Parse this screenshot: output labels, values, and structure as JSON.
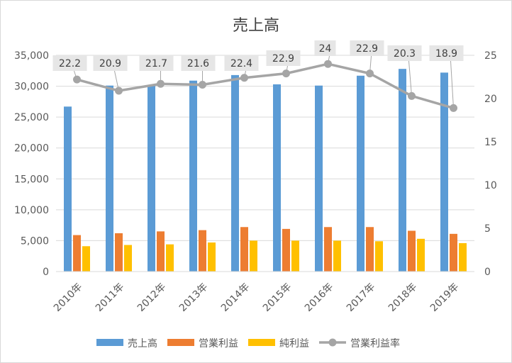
{
  "chart_data": {
    "type": "bar",
    "title": "売上高",
    "categories": [
      "2010年",
      "2011年",
      "2012年",
      "2013年",
      "2014年",
      "2015年",
      "2016年",
      "2017年",
      "2018年",
      "2019年"
    ],
    "series": [
      {
        "name": "売上高",
        "type": "bar",
        "axis": "left",
        "color": "#5b9bd5",
        "values": [
          26700,
          30100,
          30100,
          30900,
          31800,
          30300,
          30100,
          31700,
          32800,
          32200
        ]
      },
      {
        "name": "営業利益",
        "type": "bar",
        "axis": "left",
        "color": "#ed7d31",
        "values": [
          5900,
          6200,
          6500,
          6700,
          7200,
          6900,
          7200,
          7200,
          6600,
          6100
        ]
      },
      {
        "name": "純利益",
        "type": "bar",
        "axis": "left",
        "color": "#ffc000",
        "values": [
          4100,
          4300,
          4400,
          4700,
          5000,
          5000,
          5000,
          4900,
          5300,
          4600
        ]
      },
      {
        "name": "営業利益率",
        "type": "line",
        "axis": "right",
        "color": "#a5a5a5",
        "values": [
          22.2,
          20.9,
          21.7,
          21.6,
          22.4,
          22.9,
          24,
          22.9,
          20.3,
          18.9
        ],
        "labels": [
          "22.2",
          "20.9",
          "21.7",
          "21.6",
          "22.4",
          "22.9",
          "24",
          "22.9",
          "20.3",
          "18.9"
        ]
      }
    ],
    "y_left": {
      "lim": [
        0,
        35000
      ],
      "ticks": [
        "0",
        "5,000",
        "10,000",
        "15,000",
        "20,000",
        "25,000",
        "30,000",
        "35,000"
      ]
    },
    "y_right": {
      "lim": [
        0,
        25
      ],
      "ticks": [
        "0",
        "5",
        "10",
        "15",
        "20",
        "25"
      ]
    },
    "grid": true,
    "legend": "bottom"
  }
}
